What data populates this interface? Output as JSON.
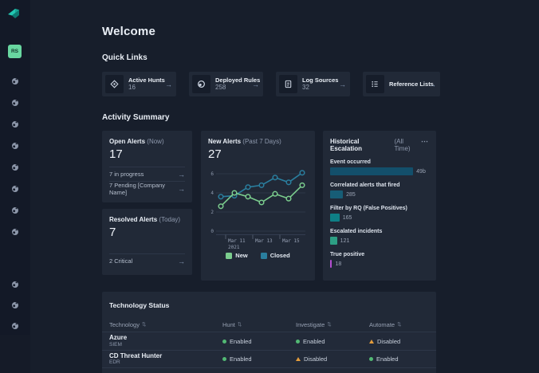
{
  "header": {
    "title": "Welcome"
  },
  "sidebar": {
    "avatar_initials": "RS",
    "nav_top": [
      "nav-shield-icon",
      "nav-shield-icon",
      "nav-shield-icon",
      "nav-shield-icon",
      "nav-shield-icon",
      "nav-shield-icon",
      "nav-shield-icon",
      "nav-shield-icon"
    ],
    "nav_bottom": [
      "nav-shield-icon",
      "nav-shield-icon",
      "nav-shield-icon"
    ]
  },
  "icons": {
    "arrow_glyph": "→",
    "more_glyph": "⋯",
    "sort_glyph": "⇅"
  },
  "quick_links": {
    "section_label": "Quick Links",
    "cards": [
      {
        "label": "Active Hunts",
        "value": "16",
        "icon": "target-icon"
      },
      {
        "label": "Deployed Rules",
        "value": "258",
        "icon": "shield-icon"
      },
      {
        "label": "Log Sources",
        "value": "32",
        "icon": "document-icon"
      },
      {
        "label": "Reference Lists",
        "value": "",
        "icon": "list-icon"
      }
    ]
  },
  "activity": {
    "section_label": "Activity Summary",
    "open_alerts": {
      "title": "Open Alerts",
      "scope": "(Now)",
      "value": "17",
      "links": [
        {
          "label": "7 in progress"
        },
        {
          "label": "7 Pending [Company Name]"
        }
      ]
    },
    "resolved_alerts": {
      "title": "Resolved Alerts",
      "scope": "(Today)",
      "value": "7",
      "links": [
        {
          "label": "2 Critical"
        }
      ]
    },
    "new_alerts": {
      "title": "New Alerts",
      "scope": "(Past 7 Days)",
      "value": "27"
    },
    "historical": {
      "title": "Historical Escalation",
      "scope": "(All Time)",
      "funnel": [
        {
          "label": "Event occurred",
          "value": "49b",
          "width_pct": 84,
          "color": "#134f6b"
        },
        {
          "label": "Correlated alerts that fired",
          "value": "285",
          "width_pct": 13,
          "color": "#175d76"
        },
        {
          "label": "Filter by RQ (False Positives)",
          "value": "165",
          "width_pct": 9.5,
          "color": "#0e7f86"
        },
        {
          "label": "Escalated incidents",
          "value": "121",
          "width_pct": 7,
          "color": "#2d9f84"
        },
        {
          "label": "True positive",
          "value": "18",
          "width_pct": 2,
          "color": "#b44ed2"
        }
      ]
    }
  },
  "chart_data": {
    "type": "line",
    "title": "New Alerts (Past 7 Days)",
    "x": [
      0,
      1,
      2,
      3,
      4,
      5,
      6
    ],
    "x_ticks": [
      {
        "index": 1,
        "label": "Mar 11",
        "sub": "2021"
      },
      {
        "index": 3,
        "label": "Mar 13",
        "sub": ""
      },
      {
        "index": 5,
        "label": "Mar 15",
        "sub": ""
      }
    ],
    "yticks": [
      0,
      2,
      4,
      6
    ],
    "ylim": [
      0,
      7
    ],
    "grid": true,
    "legend_position": "bottom",
    "series": [
      {
        "name": "Closed",
        "color": "#2a7e9e",
        "values": [
          3.6,
          3.7,
          4.6,
          4.8,
          5.6,
          5.1,
          6.1
        ]
      },
      {
        "name": "New",
        "color": "#7bcd8e",
        "values": [
          2.6,
          4.0,
          3.6,
          3.0,
          3.9,
          3.4,
          4.8
        ]
      }
    ]
  },
  "table": {
    "title": "Technology Status",
    "columns": [
      "Technology",
      "Hunt",
      "Investigate",
      "Automate"
    ],
    "status_styles": {
      "Enabled": {
        "glyph": "dot",
        "color": "#52b974"
      },
      "Disabled": {
        "glyph": "triangle",
        "color": "#e39c3c"
      }
    },
    "rows": [
      {
        "name": "Azure",
        "type": "SIEM",
        "hunt": "Enabled",
        "investigate": "Enabled",
        "automate": "Disabled"
      },
      {
        "name": "CD Threat Hunter",
        "type": "EDR",
        "hunt": "Enabled",
        "investigate": "Disabled",
        "automate": "Enabled"
      }
    ]
  },
  "colors": {
    "page_bg": "#171e2b",
    "sidebar_bg": "#131927",
    "card_bg": "#212937",
    "accent_green": "#68d6a0",
    "enabled_green": "#52b974",
    "disabled_amber": "#e39c3c",
    "series_new": "#7bcd8e",
    "series_closed": "#2a7e9e"
  }
}
